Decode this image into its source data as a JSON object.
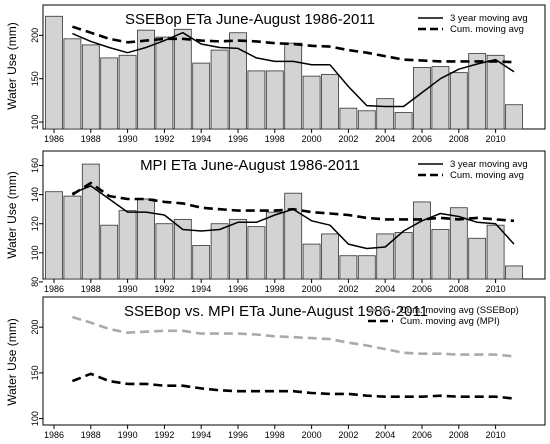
{
  "chart_data": [
    {
      "type": "bar",
      "title": "SSEBop ETa June-August 1986-2011",
      "xlabel": "",
      "ylabel": "Water Use (mm)",
      "ylim": [
        92,
        235
      ],
      "yticks": [
        100,
        150,
        200
      ],
      "x": [
        1986,
        1987,
        1988,
        1989,
        1990,
        1991,
        1992,
        1993,
        1994,
        1995,
        1996,
        1997,
        1998,
        1999,
        2000,
        2001,
        2002,
        2003,
        2004,
        2005,
        2006,
        2007,
        2008,
        2009,
        2010,
        2011
      ],
      "xtick_labels": [
        "1986",
        "1988",
        "1990",
        "1992",
        "1994",
        "1996",
        "1998",
        "2000",
        "2002",
        "2004",
        "2006",
        "2008",
        "2010"
      ],
      "legend_position": "top-right",
      "grid": false,
      "series": [
        {
          "name": "",
          "kind": "bar",
          "color": "#d3d3d3",
          "values": [
            222,
            196,
            189,
            174,
            177,
            206,
            198,
            207,
            168,
            183,
            203,
            159,
            159,
            191,
            153,
            155,
            116,
            113,
            127,
            111,
            163,
            164,
            157,
            179,
            177,
            120
          ]
        },
        {
          "name": "3 year moving avg",
          "kind": "line",
          "style": "solid",
          "color": "#000000",
          "x": [
            1987,
            1988,
            1989,
            1990,
            1991,
            1992,
            1993,
            1994,
            1995,
            1996,
            1997,
            1998,
            1999,
            2000,
            2001,
            2002,
            2003,
            2004,
            2005,
            2006,
            2007,
            2008,
            2009,
            2010,
            2011
          ],
          "values": [
            202,
            193,
            186,
            180,
            186,
            194,
            203,
            190,
            186,
            185,
            174,
            170,
            170,
            166,
            166,
            141,
            119,
            118,
            118,
            134,
            150,
            161,
            167,
            172,
            158
          ]
        },
        {
          "name": "Cum. moving avg",
          "kind": "line",
          "style": "dashed",
          "color": "#000000",
          "x": [
            1987,
            1988,
            1989,
            1990,
            1991,
            1992,
            1993,
            1994,
            1995,
            1996,
            1997,
            1998,
            1999,
            2000,
            2001,
            2002,
            2003,
            2004,
            2005,
            2006,
            2007,
            2008,
            2009,
            2010,
            2011
          ],
          "values": [
            210,
            203,
            196,
            192,
            194,
            196,
            196,
            194,
            193,
            194,
            193,
            191,
            190,
            188,
            187,
            183,
            180,
            176,
            172,
            171,
            170,
            170,
            170,
            170,
            169
          ]
        }
      ]
    },
    {
      "type": "bar",
      "title": "MPI ETa June-August 1986-2011",
      "xlabel": "",
      "ylabel": "Water Use (mm)",
      "ylim": [
        82,
        170
      ],
      "yticks": [
        80,
        100,
        120,
        140,
        160
      ],
      "x": [
        1986,
        1987,
        1988,
        1989,
        1990,
        1991,
        1992,
        1993,
        1994,
        1995,
        1996,
        1997,
        1998,
        1999,
        2000,
        2001,
        2002,
        2003,
        2004,
        2005,
        2006,
        2007,
        2008,
        2009,
        2010,
        2011
      ],
      "xtick_labels": [
        "1986",
        "1988",
        "1990",
        "1992",
        "1994",
        "1996",
        "1998",
        "2000",
        "2002",
        "2004",
        "2006",
        "2008",
        "2010"
      ],
      "legend_position": "top-right",
      "grid": false,
      "series": [
        {
          "name": "",
          "kind": "bar",
          "color": "#d3d3d3",
          "values": [
            142,
            139,
            161,
            119,
            129,
            137,
            120,
            123,
            105,
            120,
            123,
            118,
            128,
            141,
            106,
            113,
            98,
            98,
            113,
            114,
            135,
            116,
            131,
            110,
            119,
            91
          ]
        },
        {
          "name": "3 year moving avg",
          "kind": "line",
          "style": "solid",
          "color": "#000000",
          "x": [
            1987,
            1988,
            1989,
            1990,
            1991,
            1992,
            1993,
            1994,
            1995,
            1996,
            1997,
            1998,
            1999,
            2000,
            2001,
            2002,
            2003,
            2004,
            2005,
            2006,
            2007,
            2008,
            2009,
            2010,
            2011
          ],
          "values": [
            141,
            146,
            137,
            128,
            128,
            126,
            116,
            115,
            116,
            121,
            121,
            126,
            130,
            122,
            119,
            106,
            103,
            104,
            115,
            122,
            127,
            125,
            121,
            120,
            106
          ]
        },
        {
          "name": "Cum. moving avg",
          "kind": "line",
          "style": "dashed",
          "color": "#000000",
          "x": [
            1987,
            1988,
            1989,
            1990,
            1991,
            1992,
            1993,
            1994,
            1995,
            1996,
            1997,
            1998,
            1999,
            2000,
            2001,
            2002,
            2003,
            2004,
            2005,
            2006,
            2007,
            2008,
            2009,
            2010,
            2011
          ],
          "values": [
            140,
            148,
            139,
            137,
            137,
            135,
            134,
            131,
            130,
            129,
            129,
            129,
            130,
            128,
            127,
            126,
            124,
            123,
            123,
            123,
            124,
            123,
            124,
            123,
            122
          ]
        }
      ]
    },
    {
      "type": "line",
      "title": "SSEBop vs. MPI ETa June-August 1986-2011",
      "xlabel": "",
      "ylabel": "Water Use (mm)",
      "ylim": [
        93,
        233
      ],
      "yticks": [
        100,
        150,
        200
      ],
      "x": [
        1987,
        1988,
        1989,
        1990,
        1991,
        1992,
        1993,
        1994,
        1995,
        1996,
        1997,
        1998,
        1999,
        2000,
        2001,
        2002,
        2003,
        2004,
        2005,
        2006,
        2007,
        2008,
        2009,
        2010,
        2011
      ],
      "xtick_labels": [
        "1986",
        "1988",
        "1990",
        "1992",
        "1994",
        "1996",
        "1998",
        "2000",
        "2002",
        "2004",
        "2006",
        "2008",
        "2010"
      ],
      "legend_position": "top-right",
      "grid": false,
      "series": [
        {
          "name": "Cum. moving avg (SSEBop)",
          "kind": "line",
          "style": "dashed",
          "color": "#aaaaaa",
          "values": [
            211,
            205,
            198,
            194,
            195,
            196,
            196,
            193,
            193,
            193,
            192,
            190,
            189,
            188,
            187,
            183,
            180,
            176,
            172,
            171,
            171,
            170,
            170,
            170,
            168
          ]
        },
        {
          "name": "Cum. moving avg (MPI)",
          "kind": "line",
          "style": "dashed",
          "color": "#000000",
          "values": [
            141,
            149,
            141,
            138,
            138,
            136,
            136,
            133,
            131,
            130,
            130,
            130,
            130,
            128,
            127,
            127,
            125,
            124,
            124,
            124,
            125,
            124,
            124,
            124,
            122
          ]
        }
      ]
    }
  ]
}
